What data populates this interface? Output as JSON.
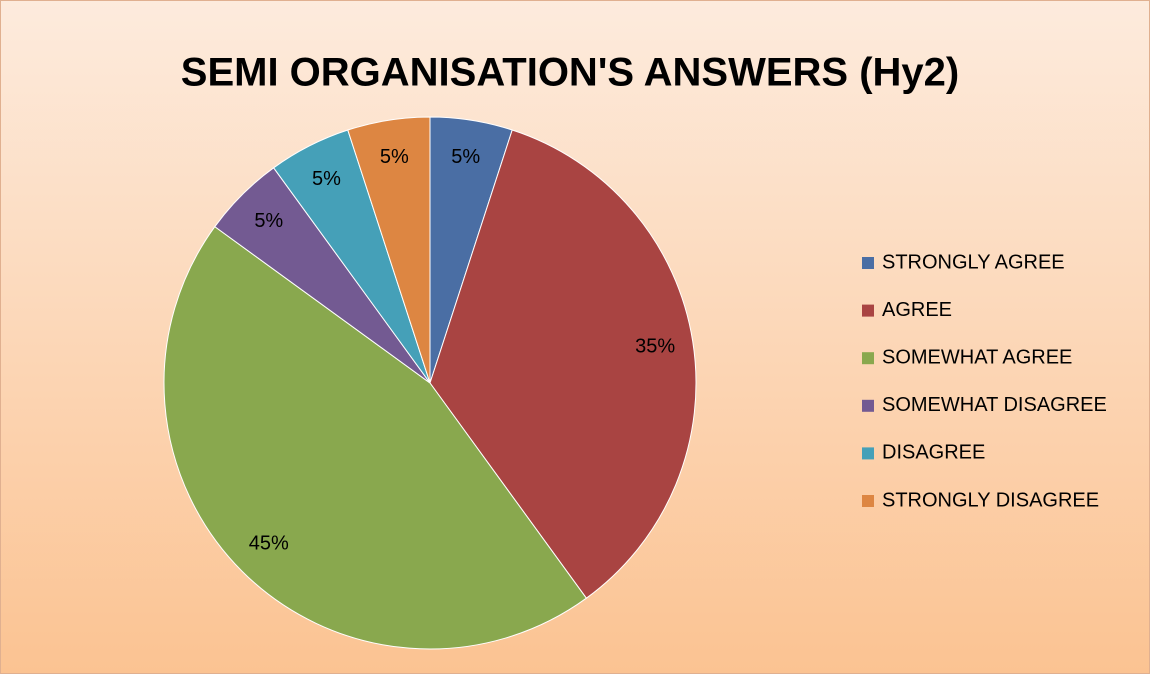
{
  "chart_data": {
    "type": "pie",
    "title": "SEMI ORGANISATION'S ANSWERS (Hy2)",
    "categories": [
      "STRONGLY AGREE",
      "AGREE",
      "SOMEWHAT AGREE",
      "SOMEWHAT DISAGREE",
      "DISAGREE",
      "STRONGLY DISAGREE"
    ],
    "values": [
      5,
      35,
      45,
      5,
      5,
      5
    ],
    "value_labels": [
      "5%",
      "35%",
      "45%",
      "5%",
      "5%",
      "5%"
    ],
    "colors": [
      "#4a6ea4",
      "#a94442",
      "#89a84e",
      "#735a92",
      "#45a0b8",
      "#dd8642"
    ],
    "legend": "right"
  }
}
